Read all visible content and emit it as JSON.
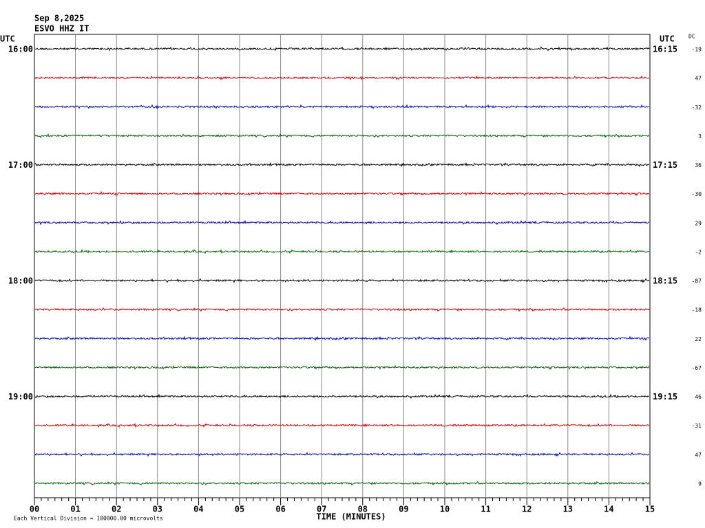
{
  "header": {
    "date": "Sep 8,2025",
    "station": "ESVO HHZ IT"
  },
  "left_axis": {
    "title": "UTC",
    "labels": [
      "16:00",
      "17:00",
      "18:00",
      "19:00"
    ]
  },
  "right_axis": {
    "title": "UTC",
    "labels": [
      "16:15",
      "17:15",
      "18:15",
      "19:15"
    ]
  },
  "dc": {
    "title": "DC",
    "values": [
      -19,
      47,
      -32,
      3,
      36,
      -30,
      29,
      -2,
      -87,
      -18,
      22,
      -67,
      46,
      -31,
      47,
      9
    ]
  },
  "x_axis": {
    "title": "TIME (MINUTES)",
    "ticks": [
      "00",
      "01",
      "02",
      "03",
      "04",
      "05",
      "06",
      "07",
      "08",
      "09",
      "10",
      "11",
      "12",
      "13",
      "14",
      "15"
    ]
  },
  "footer": "Each Vertical Division = 100000.00 microvolts"
}
